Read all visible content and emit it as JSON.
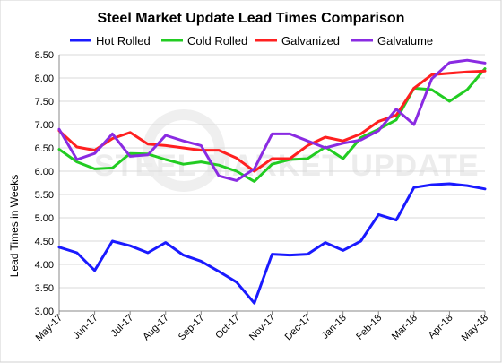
{
  "chart_data": {
    "type": "line",
    "title": "Steel Market Update Lead Times Comparison",
    "ylabel": "Lead Times in Weeks",
    "xlabel": "",
    "ylim": [
      3.0,
      8.5
    ],
    "yticks": [
      "3.00",
      "3.50",
      "4.00",
      "4.50",
      "5.00",
      "5.50",
      "6.00",
      "6.50",
      "7.00",
      "7.50",
      "8.00",
      "8.50"
    ],
    "xticks": [
      "May-17",
      "Jun-17",
      "Jul-17",
      "Aug-17",
      "Sep-17",
      "Oct-17",
      "Nov-17",
      "Dec-17",
      "Jan-18",
      "Feb-18",
      "Mar-18",
      "Apr-18",
      "May-18"
    ],
    "grid": true,
    "legend_position": "top",
    "watermark": "STEEL MARKET UPDATE",
    "series": [
      {
        "name": "Hot Rolled",
        "color": "#1a1aff",
        "values": [
          4.37,
          4.25,
          3.87,
          4.5,
          4.4,
          4.25,
          4.47,
          4.2,
          4.07,
          3.85,
          3.62,
          3.17,
          4.22,
          4.2,
          4.22,
          4.47,
          4.3,
          4.5,
          5.07,
          4.95,
          5.65,
          5.71,
          5.73,
          5.69,
          5.62
        ]
      },
      {
        "name": "Cold Rolled",
        "color": "#22cc22",
        "values": [
          6.47,
          6.2,
          6.05,
          6.07,
          6.38,
          6.37,
          6.25,
          6.15,
          6.2,
          6.13,
          6.0,
          5.78,
          6.15,
          6.25,
          6.27,
          6.52,
          6.27,
          6.72,
          6.9,
          7.1,
          7.78,
          7.75,
          7.5,
          7.75,
          8.2
        ]
      },
      {
        "name": "Galvanized",
        "color": "#ff2020",
        "values": [
          6.87,
          6.52,
          6.45,
          6.7,
          6.83,
          6.58,
          6.55,
          6.5,
          6.45,
          6.45,
          6.28,
          6.0,
          6.27,
          6.27,
          6.55,
          6.73,
          6.65,
          6.8,
          7.07,
          7.2,
          7.78,
          8.07,
          8.1,
          8.13,
          8.15
        ]
      },
      {
        "name": "Galvalume",
        "color": "#8a2be2",
        "values": [
          6.9,
          6.25,
          6.38,
          6.8,
          6.32,
          6.35,
          6.77,
          6.65,
          6.55,
          5.9,
          5.8,
          6.05,
          6.8,
          6.8,
          6.65,
          6.5,
          6.6,
          6.67,
          6.87,
          7.33,
          7.0,
          7.98,
          8.33,
          8.38,
          8.32
        ]
      }
    ]
  }
}
